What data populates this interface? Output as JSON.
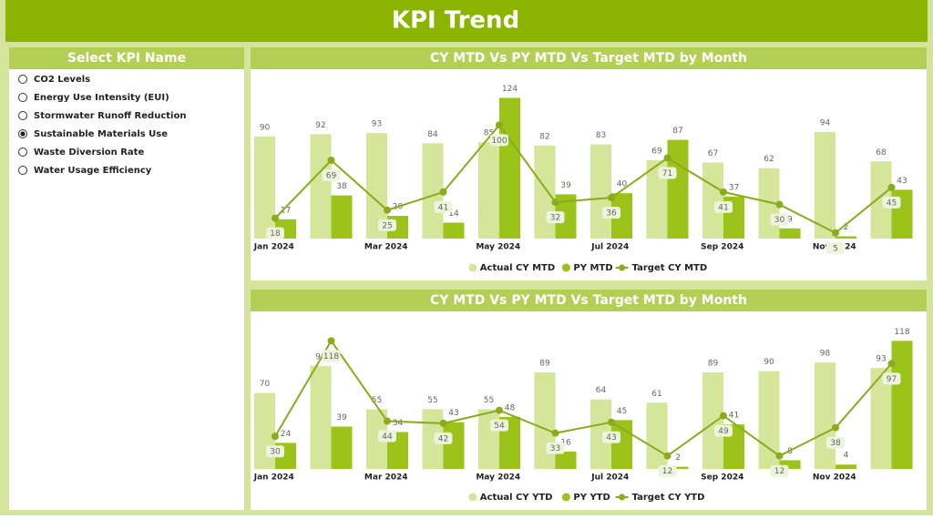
{
  "header": {
    "title": "KPI Trend"
  },
  "slicer": {
    "title": "Select KPI Name",
    "options": [
      "CO2 Levels",
      "Energy Use Intensity (EUI)",
      "Stormwater Runoff Reduction",
      "Sustainable Materials Use",
      "Waste Diversion Rate",
      "Water Usage Efficiency"
    ],
    "selected": "Sustainable Materials Use"
  },
  "chart_data": [
    {
      "type": "bar-line",
      "title": "CY MTD Vs PY MTD Vs Target MTD by Month",
      "categories": [
        "Jan 2024",
        null,
        "Mar 2024",
        null,
        "May 2024",
        null,
        "Jul 2024",
        null,
        "Sep 2024",
        null,
        "Nov 2024",
        null
      ],
      "ylim": [
        0,
        130
      ],
      "legend": "bottom",
      "series": [
        {
          "name": "Actual CY MTD",
          "color": "#d5e69b",
          "kind": "bar",
          "values": [
            90,
            92,
            93,
            84,
            85,
            82,
            83,
            69,
            67,
            62,
            94,
            68
          ]
        },
        {
          "name": "PY MTD",
          "color": "#9cc31a",
          "kind": "bar",
          "values": [
            17,
            38,
            20,
            14,
            124,
            39,
            40,
            87,
            37,
            9,
            2,
            43
          ]
        },
        {
          "name": "Target CY MTD",
          "color": "#8aab1c",
          "kind": "line",
          "values": [
            18,
            69,
            25,
            41,
            100,
            32,
            36,
            71,
            41,
            30,
            5,
            45
          ]
        }
      ]
    },
    {
      "type": "bar-line",
      "title": "CY MTD Vs PY MTD Vs Target MTD by Month",
      "categories": [
        "Jan 2024",
        null,
        "Mar 2024",
        null,
        "May 2024",
        null,
        "Jul 2024",
        null,
        "Sep 2024",
        null,
        "Nov 2024",
        null
      ],
      "ylim": [
        0,
        125
      ],
      "legend": "bottom",
      "series": [
        {
          "name": "Actual CY YTD",
          "color": "#d5e69b",
          "kind": "bar",
          "values": [
            70,
            95,
            55,
            55,
            55,
            89,
            64,
            61,
            89,
            90,
            98,
            93
          ]
        },
        {
          "name": "PY YTD",
          "color": "#9cc31a",
          "kind": "bar",
          "values": [
            24,
            39,
            34,
            43,
            48,
            16,
            45,
            2,
            41,
            8,
            4,
            118
          ]
        },
        {
          "name": "Target CY YTD",
          "color": "#8aab1c",
          "kind": "line",
          "values": [
            30,
            118,
            44,
            42,
            54,
            33,
            43,
            12,
            49,
            12,
            38,
            97
          ]
        }
      ]
    }
  ]
}
